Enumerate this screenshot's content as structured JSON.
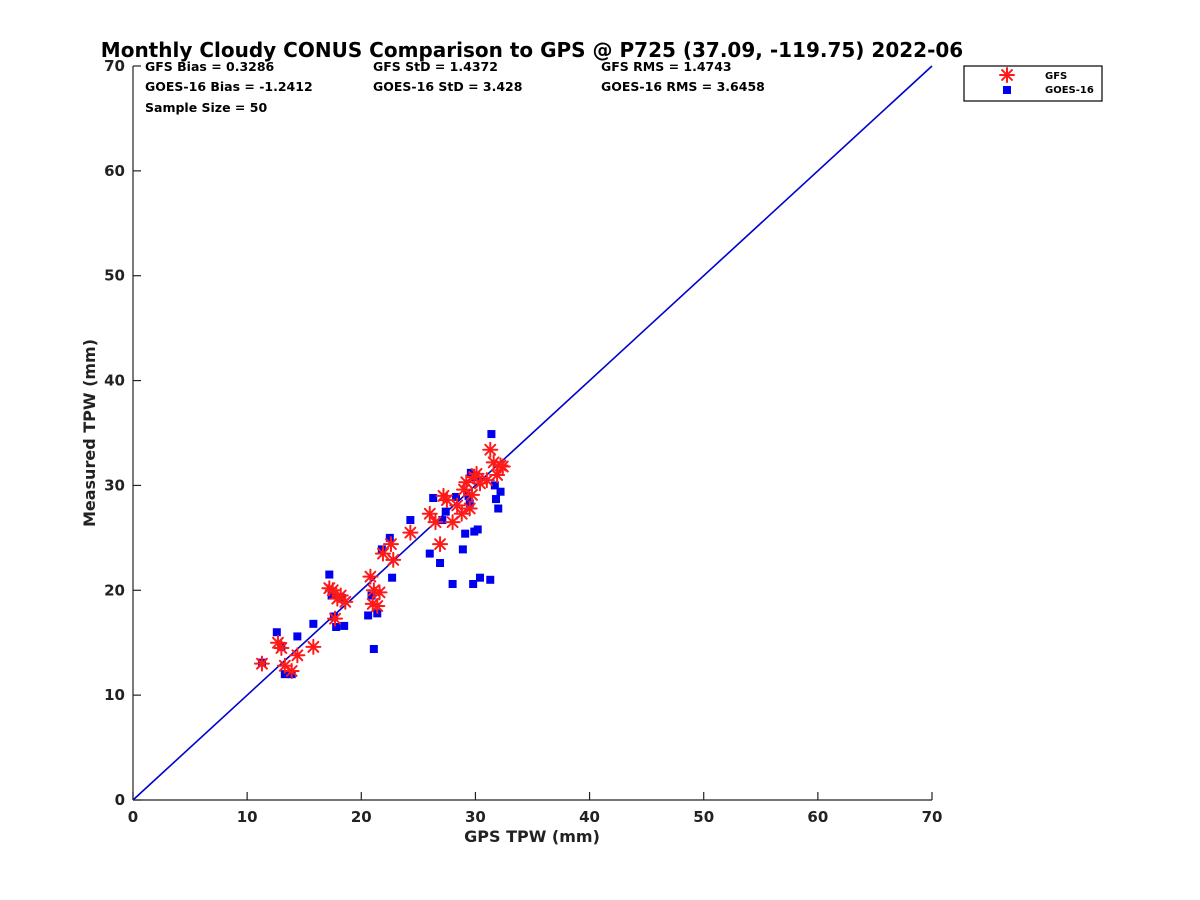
{
  "colors": {
    "gfs": "#ff1a1a",
    "goes": "#0000ee",
    "line": "#0000d0",
    "axis": "#222222"
  },
  "chart_data": {
    "type": "scatter",
    "title": "Monthly Cloudy CONUS Comparison to GPS @ P725 (37.09, -119.75) 2022-06",
    "xlabel": "GPS TPW (mm)",
    "ylabel": "Measured TPW (mm)",
    "xlim": [
      0,
      70
    ],
    "ylim": [
      0,
      70
    ],
    "xticks": [
      0,
      10,
      20,
      30,
      40,
      50,
      60,
      70
    ],
    "yticks": [
      0,
      10,
      20,
      30,
      40,
      50,
      60,
      70
    ],
    "legend_position": "top-right",
    "stats": [
      "GFS Bias = 0.3286",
      "GFS StD = 1.4372",
      "GFS RMS = 1.4743",
      "GOES-16 Bias = -1.2412",
      "GOES-16 StD = 3.428",
      "GOES-16 RMS = 3.6458",
      "Sample Size = 50"
    ],
    "reference_line": {
      "name": "1:1",
      "x": [
        0,
        70
      ],
      "y": [
        0,
        70
      ]
    },
    "series": [
      {
        "name": "GFS",
        "marker": "asterisk",
        "points": [
          [
            11.3,
            13.0
          ],
          [
            12.7,
            15.0
          ],
          [
            13.0,
            14.5
          ],
          [
            13.3,
            12.8
          ],
          [
            13.9,
            12.3
          ],
          [
            14.4,
            13.8
          ],
          [
            15.8,
            14.6
          ],
          [
            17.2,
            20.2
          ],
          [
            17.5,
            20.0
          ],
          [
            17.7,
            17.3
          ],
          [
            17.9,
            19.2
          ],
          [
            18.2,
            19.5
          ],
          [
            18.6,
            18.9
          ],
          [
            20.8,
            21.3
          ],
          [
            21.0,
            18.7
          ],
          [
            21.1,
            20.0
          ],
          [
            21.4,
            18.5
          ],
          [
            21.6,
            19.8
          ],
          [
            21.9,
            23.5
          ],
          [
            22.6,
            24.4
          ],
          [
            22.8,
            22.9
          ],
          [
            24.3,
            25.5
          ],
          [
            26.0,
            27.3
          ],
          [
            26.5,
            26.5
          ],
          [
            26.9,
            24.4
          ],
          [
            27.2,
            29.0
          ],
          [
            27.5,
            28.6
          ],
          [
            28.0,
            26.5
          ],
          [
            28.4,
            28.1
          ],
          [
            28.8,
            27.3
          ],
          [
            29.0,
            29.6
          ],
          [
            29.2,
            30.3
          ],
          [
            29.5,
            27.8
          ],
          [
            29.7,
            29.1
          ],
          [
            29.9,
            30.8
          ],
          [
            30.1,
            31.1
          ],
          [
            30.4,
            30.2
          ],
          [
            31.0,
            30.5
          ],
          [
            31.3,
            33.4
          ],
          [
            31.6,
            32.2
          ],
          [
            31.9,
            31.0
          ],
          [
            32.2,
            31.9
          ],
          [
            32.4,
            31.8
          ]
        ]
      },
      {
        "name": "GOES-16",
        "marker": "square",
        "points": [
          [
            11.3,
            13.1
          ],
          [
            12.6,
            16.0
          ],
          [
            13.0,
            14.6
          ],
          [
            13.3,
            12.0
          ],
          [
            13.9,
            12.0
          ],
          [
            14.4,
            15.6
          ],
          [
            15.8,
            16.8
          ],
          [
            17.2,
            21.5
          ],
          [
            17.4,
            19.5
          ],
          [
            17.6,
            17.5
          ],
          [
            17.8,
            16.5
          ],
          [
            18.2,
            19.3
          ],
          [
            18.5,
            16.6
          ],
          [
            20.6,
            17.6
          ],
          [
            20.9,
            19.5
          ],
          [
            21.1,
            14.4
          ],
          [
            21.4,
            17.8
          ],
          [
            21.8,
            23.9
          ],
          [
            22.5,
            25.0
          ],
          [
            22.7,
            21.2
          ],
          [
            24.3,
            26.7
          ],
          [
            26.0,
            23.5
          ],
          [
            26.3,
            28.8
          ],
          [
            26.9,
            22.6
          ],
          [
            27.1,
            26.7
          ],
          [
            27.4,
            27.5
          ],
          [
            28.0,
            20.6
          ],
          [
            28.3,
            28.9
          ],
          [
            28.9,
            23.9
          ],
          [
            29.1,
            25.4
          ],
          [
            29.4,
            29.0
          ],
          [
            29.6,
            31.2
          ],
          [
            29.8,
            20.6
          ],
          [
            29.9,
            25.6
          ],
          [
            30.2,
            25.8
          ],
          [
            30.4,
            21.2
          ],
          [
            31.3,
            21.0
          ],
          [
            31.4,
            34.9
          ],
          [
            31.7,
            30.0
          ],
          [
            31.8,
            28.7
          ],
          [
            32.0,
            27.8
          ],
          [
            32.2,
            29.4
          ],
          [
            29.5,
            28.3
          ],
          [
            30.0,
            30.8
          ]
        ]
      }
    ]
  }
}
